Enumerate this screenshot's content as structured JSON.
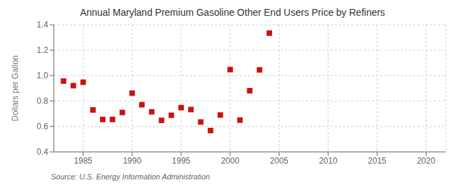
{
  "chart_data": {
    "type": "scatter",
    "title": "Annual Maryland Premium Gasoline Other End Users Price by Refiners",
    "ylabel": "Dollars per Gallon",
    "annotations": [
      "Source: U.S. Energy Information Administration"
    ],
    "x": [
      1983,
      1984,
      1985,
      1986,
      1987,
      1988,
      1989,
      1990,
      1991,
      1992,
      1993,
      1994,
      1995,
      1996,
      1997,
      1998,
      1999,
      2000,
      2001,
      2002,
      2003,
      2004
    ],
    "values": [
      0.957,
      0.921,
      0.948,
      0.73,
      0.655,
      0.655,
      0.71,
      0.862,
      0.771,
      0.715,
      0.648,
      0.688,
      0.748,
      0.733,
      0.635,
      0.568,
      0.69,
      1.047,
      0.65,
      0.881,
      1.045,
      1.334
    ],
    "color": "#cc1111",
    "marker": "square",
    "xlim": [
      1982,
      2022
    ],
    "ylim": [
      0.4,
      1.4
    ],
    "xticks": [
      1985,
      1990,
      1995,
      2000,
      2005,
      2010,
      2015,
      2020
    ],
    "yticks": [
      0.4,
      0.6,
      0.8,
      {
        "value": 1.0,
        "label": "1.0"
      },
      1.2,
      1.4
    ],
    "grid": true
  }
}
